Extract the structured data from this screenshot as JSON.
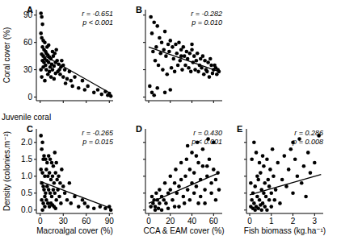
{
  "chart_data": [
    {
      "type": "scatter",
      "title": "A",
      "y_label": "Coral cover (%)",
      "annotations": [
        "r = -0.651",
        "p < 0.001"
      ],
      "xlim": [
        -5,
        95
      ],
      "ylim": [
        -4,
        96
      ],
      "xticks": [
        0,
        30,
        60,
        90
      ],
      "yticks": [
        0,
        30,
        60,
        90
      ],
      "tick_labels": "y",
      "series": [
        {
          "type": "scatter",
          "marker": "circle",
          "color": "#000000",
          "x": [
            1,
            2,
            3,
            1,
            2,
            4,
            6,
            3,
            5,
            7,
            8,
            2,
            4,
            10,
            12,
            6,
            9,
            14,
            11,
            15,
            5,
            7,
            13,
            16,
            18,
            20,
            22,
            17,
            19,
            21,
            24,
            25,
            23,
            27,
            28,
            30,
            26,
            12,
            8,
            10,
            14,
            18,
            20,
            30,
            32,
            35,
            33,
            38,
            40,
            42,
            45,
            50,
            55,
            58,
            62,
            70,
            75,
            80,
            85,
            88,
            90,
            92,
            4,
            9,
            16,
            3,
            1,
            2,
            6,
            11
          ],
          "values": [
            92,
            88,
            80,
            70,
            65,
            62,
            60,
            55,
            52,
            50,
            48,
            47,
            45,
            46,
            44,
            42,
            40,
            42,
            38,
            36,
            38,
            35,
            33,
            30,
            34,
            38,
            40,
            45,
            48,
            52,
            36,
            30,
            28,
            33,
            40,
            35,
            25,
            28,
            30,
            25,
            22,
            20,
            26,
            22,
            30,
            20,
            15,
            28,
            18,
            12,
            22,
            10,
            18,
            8,
            12,
            5,
            8,
            3,
            6,
            2,
            4,
            1,
            33,
            55,
            50,
            40,
            30,
            22,
            18,
            57
          ]
        },
        {
          "type": "line",
          "line_style": "solid",
          "color": "#000000",
          "x": [
            0,
            92
          ],
          "values": [
            48,
            4
          ]
        }
      ]
    },
    {
      "type": "scatter",
      "title": "B",
      "annotations": [
        "r = -0.282",
        "p = 0.010"
      ],
      "xlim": [
        -3,
        68
      ],
      "ylim": [
        -4,
        96
      ],
      "xticks": [
        0,
        20,
        40,
        60
      ],
      "yticks": [
        0,
        30,
        60,
        90
      ],
      "tick_labels": false,
      "series": [
        {
          "type": "scatter",
          "marker": "circle",
          "color": "#000000",
          "x": [
            2,
            5,
            8,
            3,
            10,
            15,
            12,
            18,
            20,
            22,
            25,
            28,
            30,
            32,
            35,
            38,
            40,
            42,
            45,
            48,
            50,
            52,
            55,
            58,
            60,
            62,
            65,
            63,
            57,
            53,
            47,
            44,
            41,
            36,
            33,
            29,
            26,
            23,
            19,
            16,
            14,
            11,
            7,
            4,
            6,
            9,
            13,
            17,
            21,
            24,
            27,
            31,
            34,
            37,
            39,
            43,
            46,
            49,
            51,
            54,
            56,
            59,
            61,
            64,
            3,
            5,
            8,
            15,
            20,
            1,
            40,
            30
          ],
          "values": [
            88,
            82,
            78,
            70,
            65,
            72,
            60,
            58,
            62,
            55,
            58,
            60,
            52,
            55,
            50,
            48,
            52,
            45,
            48,
            42,
            45,
            40,
            38,
            35,
            30,
            32,
            28,
            25,
            42,
            30,
            35,
            40,
            38,
            42,
            45,
            40,
            48,
            42,
            50,
            45,
            52,
            48,
            55,
            50,
            40,
            35,
            30,
            25,
            32,
            28,
            35,
            30,
            35,
            32,
            28,
            30,
            28,
            32,
            25,
            28,
            22,
            26,
            35,
            30,
            5,
            2,
            10,
            5,
            8,
            12,
            58,
            45
          ]
        },
        {
          "type": "line",
          "line_style": "solid",
          "color": "#000000",
          "x": [
            0,
            65
          ],
          "values": [
            55,
            28
          ]
        }
      ]
    },
    {
      "type": "scatter",
      "title": "C",
      "subtitle": "Juvenile coral",
      "x_label": "Macroalgal cover (%)",
      "y_label": "Density (colonies.m⁻²)",
      "annotations": [
        "r = -0.265",
        "p = 0.015"
      ],
      "xlim": [
        -5,
        95
      ],
      "ylim": [
        -0.1,
        2.4
      ],
      "xticks": [
        0,
        30,
        60,
        90
      ],
      "yticks": [
        {
          "value": 0,
          "label": "0.0"
        },
        {
          "value": 0.5,
          "label": "0.5"
        },
        {
          "value": 1,
          "label": "1.0"
        },
        {
          "value": 1.5,
          "label": "1.5"
        },
        {
          "value": 2,
          "label": "2.0"
        }
      ],
      "tick_labels": true,
      "series": [
        {
          "type": "scatter",
          "marker": "circle",
          "color": "#000000",
          "x": [
            1,
            3,
            2,
            5,
            4,
            7,
            9,
            11,
            13,
            15,
            17,
            19,
            21,
            1,
            3,
            6,
            8,
            10,
            12,
            14,
            16,
            18,
            20,
            22,
            24,
            26,
            28,
            30,
            2,
            4,
            5,
            7,
            9,
            11,
            13,
            15,
            17,
            19,
            21,
            23,
            25,
            27,
            2,
            4,
            6,
            8,
            10,
            12,
            14,
            16,
            18,
            20,
            32,
            35,
            38,
            40,
            45,
            50,
            55,
            58,
            62,
            70,
            78,
            85,
            90,
            92,
            3,
            6
          ],
          "values": [
            2.2,
            2.0,
            1.8,
            1.6,
            1.5,
            1.5,
            1.4,
            1.6,
            1.5,
            1.4,
            1.3,
            1.7,
            1.4,
            1.2,
            1.1,
            1.0,
            1.2,
            1.0,
            1.1,
            0.9,
            1.0,
            0.8,
            1.1,
            0.9,
            1.0,
            0.8,
            1.2,
            0.7,
            0.8,
            0.7,
            0.6,
            0.5,
            0.7,
            0.6,
            0.5,
            0.4,
            0.6,
            0.5,
            0.3,
            0.6,
            0.4,
            0.2,
            0.3,
            0.2,
            0.1,
            0.3,
            0.2,
            0.1,
            0.2,
            0.15,
            0.1,
            0.05,
            0.5,
            0.3,
            0.8,
            0.2,
            0.4,
            0.1,
            0.3,
            0.2,
            0.1,
            0.05,
            0.1,
            0.05,
            0.1,
            0.0,
            0.0,
            0.4
          ]
        },
        {
          "type": "line",
          "line_style": "solid",
          "color": "#000000",
          "x": [
            0,
            92
          ],
          "values": [
            0.85,
            0.05
          ]
        }
      ]
    },
    {
      "type": "scatter",
      "title": "D",
      "x_label": "CCA & EAM cover (%)",
      "annotations": [
        "r = 0.430",
        "p < 0.001"
      ],
      "xlim": [
        -3,
        68
      ],
      "ylim": [
        -0.1,
        2.4
      ],
      "xticks": [
        0,
        20,
        40,
        60
      ],
      "yticks": [
        0,
        0.5,
        1,
        1.5,
        2
      ],
      "tick_labels": "x",
      "series": [
        {
          "type": "scatter",
          "marker": "circle",
          "color": "#000000",
          "x": [
            2,
            4,
            6,
            8,
            10,
            3,
            5,
            7,
            9,
            12,
            14,
            16,
            18,
            20,
            22,
            24,
            26,
            28,
            30,
            32,
            34,
            36,
            38,
            40,
            42,
            44,
            46,
            48,
            50,
            52,
            54,
            56,
            58,
            60,
            62,
            64,
            35,
            40,
            45,
            50,
            55,
            60,
            25,
            30,
            15,
            20,
            10,
            38,
            42,
            48,
            52,
            58,
            62,
            65,
            33,
            28,
            18,
            44,
            36,
            54,
            46,
            24,
            12,
            6
          ],
          "values": [
            0.1,
            0.2,
            0.1,
            0.3,
            0.2,
            0.4,
            0.3,
            0.5,
            0.05,
            0.4,
            0.3,
            0.2,
            0.5,
            0.6,
            0.3,
            0.8,
            0.5,
            0.7,
            0.9,
            0.4,
            1.0,
            0.6,
            1.2,
            0.8,
            1.1,
            0.7,
            1.4,
            0.9,
            1.3,
            0.6,
            1.0,
            1.5,
            0.8,
            1.2,
            0.9,
            1.1,
            1.5,
            1.7,
            2.0,
            1.8,
            2.1,
            2.0,
            1.2,
            1.4,
            0.8,
            1.0,
            0.6,
            0.3,
            0.5,
            0.4,
            0.2,
            0.5,
            0.3,
            0.6,
            0.2,
            0.1,
            0.05,
            1.6,
            1.9,
            1.3,
            0.2,
            0.1,
            0.0,
            0.0
          ]
        },
        {
          "type": "line",
          "line_style": "solid",
          "color": "#000000",
          "x": [
            0,
            65
          ],
          "values": [
            0.2,
            1.1
          ]
        }
      ]
    },
    {
      "type": "scatter",
      "title": "E",
      "x_label": "Fish biomass (kg.ha⁻¹)",
      "annotations": [
        "r = 0.286",
        "p = 0.008"
      ],
      "xlim": [
        -0.15,
        3.4
      ],
      "ylim": [
        -0.1,
        2.4
      ],
      "xticks": [
        0,
        1,
        2,
        3
      ],
      "yticks": [
        0,
        0.5,
        1,
        1.5,
        2
      ],
      "tick_labels": "x",
      "series": [
        {
          "type": "scatter",
          "marker": "circle",
          "color": "#000000",
          "x": [
            0.05,
            0.1,
            0.15,
            0.2,
            0.25,
            0.3,
            0.35,
            0.4,
            0.45,
            0.5,
            0.55,
            0.6,
            0.65,
            0.7,
            0.75,
            0.8,
            0.85,
            0.9,
            0.95,
            1.0,
            1.05,
            0.2,
            0.3,
            0.1,
            0.05,
            0.15,
            0.4,
            0.6,
            1.1,
            1.2,
            1.3,
            1.4,
            1.5,
            1.6,
            1.7,
            1.8,
            1.9,
            2.0,
            2.1,
            2.2,
            2.3,
            2.4,
            2.5,
            2.6,
            2.7,
            2.8,
            3.2,
            3.0,
            0.25,
            0.5,
            0.7,
            0.8,
            1.0,
            0.35,
            0.45,
            0.55,
            0.9,
            1.15,
            0.65,
            2.0
          ],
          "values": [
            0.1,
            0.3,
            0.5,
            0.2,
            0.7,
            0.1,
            0.4,
            0.9,
            0.3,
            1.1,
            0.6,
            0.2,
            1.3,
            0.8,
            0.4,
            1.5,
            0.9,
            0.3,
            1.2,
            0.5,
            1.8,
            2.0,
            1.7,
            1.5,
            0.8,
            0.05,
            0.05,
            1.6,
            1.0,
            0.6,
            1.4,
            0.2,
            0.9,
            1.6,
            0.7,
            1.2,
            1.8,
            0.5,
            1.5,
            1.0,
            2.1,
            0.8,
            1.3,
            0.4,
            1.7,
            1.1,
            2.2,
            1.4,
            0.0,
            0.15,
            0.1,
            0.0,
            0.1,
            1.0,
            1.4,
            0.0,
            0.7,
            0.3,
            0.5,
            2.0
          ]
        },
        {
          "type": "line",
          "line_style": "solid",
          "color": "#000000",
          "x": [
            0,
            3.3
          ],
          "values": [
            0.45,
            1.05
          ]
        }
      ]
    }
  ]
}
